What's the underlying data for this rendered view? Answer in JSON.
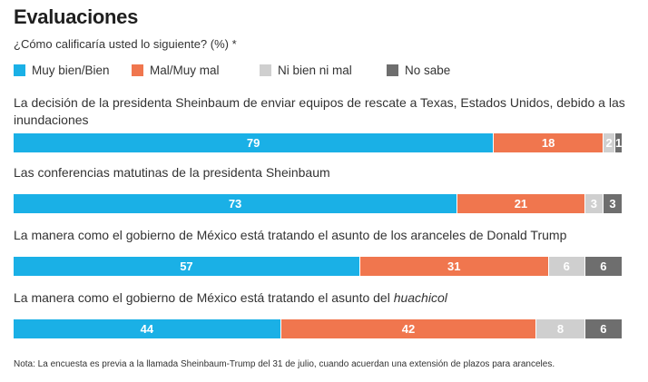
{
  "title": "Evaluaciones",
  "subtitle": "¿Cómo calificaría usted lo siguiente? (%) *",
  "colors": {
    "good": "#1ab0e6",
    "bad": "#f0764e",
    "neutral": "#cfcfcf",
    "dontknow": "#6e6e6e"
  },
  "legend": [
    {
      "label": "Muy bien/Bien",
      "color_key": "good"
    },
    {
      "label": "Mal/Muy mal",
      "color_key": "bad"
    },
    {
      "label": "Ni bien ni mal",
      "color_key": "neutral"
    },
    {
      "label": "No sabe",
      "color_key": "dontknow"
    }
  ],
  "questions": [
    {
      "text": "La decisión de la presidenta Sheinbaum de enviar equipos de rescate a Texas, Estados Unidos, debido a las inundaciones"
    },
    {
      "text": "Las conferencias matutinas de la presidenta Sheinbaum"
    },
    {
      "text": "La manera como el gobierno de México está tratando el asunto de los aranceles de Donald Trump"
    },
    {
      "text_prefix": "La manera como el gobierno de México está tratando el asunto del ",
      "text_italic": "huachicol"
    }
  ],
  "chart_data": {
    "type": "bar",
    "orientation": "horizontal",
    "stacked": true,
    "unit": "%",
    "categories": [
      "La decisión de la presidenta Sheinbaum de enviar equipos de rescate a Texas, Estados Unidos, debido a las inundaciones",
      "Las conferencias matutinas de la presidenta Sheinbaum",
      "La manera como el gobierno de México está tratando el asunto de los aranceles de Donald Trump",
      "La manera como el gobierno de México está tratando el asunto del huachicol"
    ],
    "series": [
      {
        "name": "Muy bien/Bien",
        "color_key": "good",
        "values": [
          79,
          73,
          57,
          44
        ]
      },
      {
        "name": "Mal/Muy mal",
        "color_key": "bad",
        "values": [
          18,
          21,
          31,
          42
        ]
      },
      {
        "name": "Ni bien ni mal",
        "color_key": "neutral",
        "values": [
          2,
          3,
          6,
          8
        ]
      },
      {
        "name": "No sabe",
        "color_key": "dontknow",
        "values": [
          1,
          3,
          6,
          6
        ]
      }
    ],
    "legend_position": "top",
    "grid": false
  },
  "note": "Nota: La encuesta es previa a la llamada Sheinbaum-Trump del 31 de julio, cuando acuerdan una extensión de plazos para aranceles."
}
